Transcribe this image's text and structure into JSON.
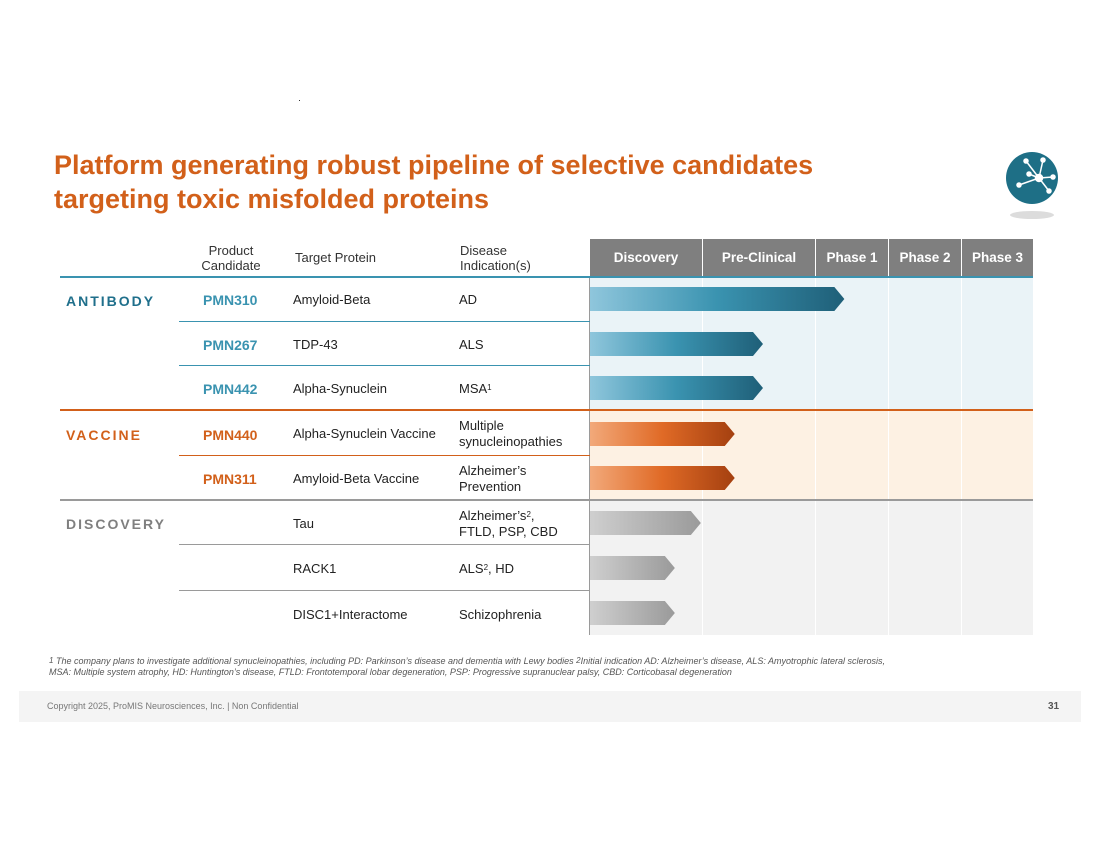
{
  "title": {
    "line1": "Platform generating robust pipeline of selective candidates",
    "line2": "targeting toxic misfolded proteins"
  },
  "logo": {
    "icon": "network-globe-icon",
    "color": "#1e6f86"
  },
  "columns": {
    "candidate_line1": "Product",
    "candidate_line2": "Candidate",
    "target": "Target Protein",
    "indication_line1": "Disease",
    "indication_line2": "Indication(s)"
  },
  "phases": [
    "Discovery",
    "Pre-Clinical",
    "Phase 1",
    "Phase 2",
    "Phase 3"
  ],
  "colors": {
    "antibody": "#1f6f8b",
    "antibody_candidate": "#3a93b0",
    "vaccine": "#d2601a",
    "discovery": "#7f7f7f",
    "antibody_band": "#eaf3f7",
    "vaccine_band": "#fdf1e3",
    "discovery_band": "#f2f2f2"
  },
  "groups": [
    {
      "name": "ANTIBODY",
      "key": "antibody"
    },
    {
      "name": "VACCINE",
      "key": "vaccine"
    },
    {
      "name": "DISCOVERY",
      "key": "discovery"
    }
  ],
  "rows": [
    {
      "group": "antibody",
      "candidate": "PMN310",
      "target": "Amyloid-Beta",
      "indication": "AD",
      "progress": 1.72
    },
    {
      "group": "antibody",
      "candidate": "PMN267",
      "target": "TDP-43",
      "indication": "ALS",
      "progress": 1.0
    },
    {
      "group": "antibody",
      "candidate": "PMN442",
      "target": "Alpha-Synuclein",
      "indication": "MSA",
      "indication_sup": "1",
      "progress": 1.0
    },
    {
      "group": "vaccine",
      "candidate": "PMN440",
      "target": "Alpha-Synuclein Vaccine",
      "indication": "Multiple",
      "indication2": "synucleinopathies",
      "progress": 0.75
    },
    {
      "group": "vaccine",
      "candidate": "PMN311",
      "target": "Amyloid-Beta Vaccine",
      "indication": "Alzheimer’s",
      "indication2": "Prevention",
      "progress": 0.75
    },
    {
      "group": "discovery",
      "candidate": "",
      "target": "Tau",
      "indication": "Alzheimer’s",
      "indication_sup": "2",
      "indication_after": ",",
      "indication2": "FTLD, PSP, CBD",
      "progress": 0.45
    },
    {
      "group": "discovery",
      "candidate": "",
      "target": "RACK1",
      "indication": "ALS",
      "indication_sup": "2",
      "indication_after": ", HD",
      "progress": 0.22
    },
    {
      "group": "discovery",
      "candidate": "",
      "target": "DISC1+Interactome",
      "indication": "Schizophrenia",
      "progress": 0.22
    }
  ],
  "footnote": {
    "line1_sup1": "1",
    "line1_a": " The company plans to investigate additional synucleinopathies, including PD: Parkinson’s disease and dementia with Lewy bodies  ",
    "line1_sup2": "2",
    "line1_b": "Initial indication AD: Alzheimer’s disease, ALS: Amyotrophic lateral sclerosis,",
    "line2": "MSA: Multiple system atrophy, HD: Huntington’s disease, FTLD: Frontotemporal lobar degeneration, PSP: Progressive supranuclear palsy, CBD: Corticobasal degeneration"
  },
  "footer": {
    "copyright": "Copyright 2025, ProMIS Neurosciences, Inc. | Non Confidential",
    "page": "31"
  }
}
